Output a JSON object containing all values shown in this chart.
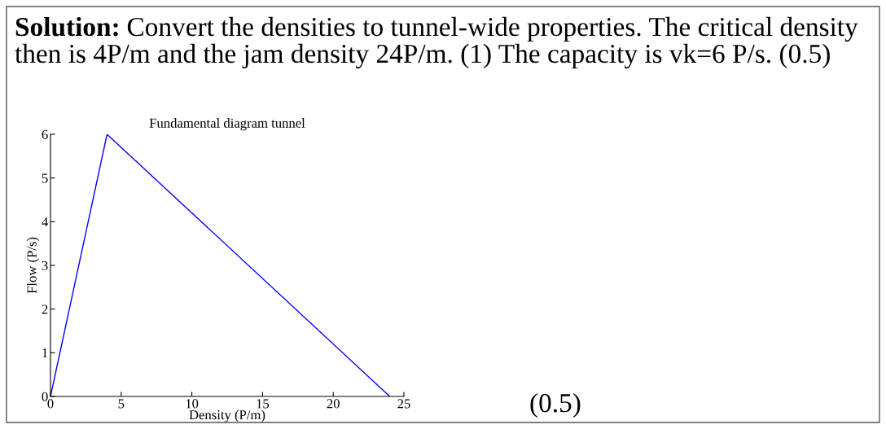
{
  "chart_data": {
    "type": "line",
    "title": "Fundamental diagram tunnel",
    "xlabel": "Density (P/m)",
    "ylabel": "Flow (P/s)",
    "x": [
      0,
      4,
      24
    ],
    "series": [
      {
        "color": "#0000ff",
        "values": [
          0,
          6,
          0
        ]
      }
    ],
    "xlim": [
      0,
      25
    ],
    "ylim": [
      0,
      6
    ],
    "xticks": [
      0,
      5,
      10,
      15,
      20,
      25
    ],
    "yticks": [
      0,
      1,
      2,
      3,
      4,
      5,
      6
    ],
    "grid": false,
    "legend": false,
    "marker": "none",
    "line_style": "solid",
    "annotations": [
      "Solution:",
      "Convert the densities to tunnel-wide properties. The critical density",
      "then is 4P/m and the jam density 24P/m. (1) The capacity is vk=6 P/s. (0.5)",
      "(0.5)"
    ]
  }
}
